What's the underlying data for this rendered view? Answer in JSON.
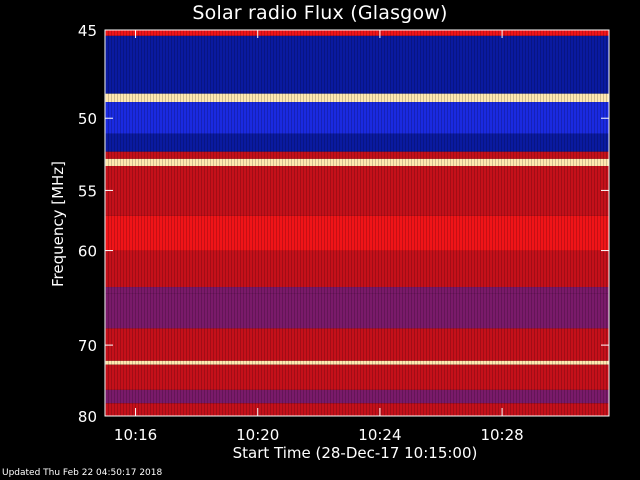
{
  "chart_data": {
    "type": "heatmap",
    "title": "Solar radio Flux (Glasgow)",
    "xlabel": "Start Time (28-Dec-17 10:15:00)",
    "ylabel": "Frequency [MHz]",
    "x_range_minutes": [
      0,
      16.5
    ],
    "ylim": [
      45,
      80
    ],
    "x_ticks": [
      {
        "label": "10:16",
        "minute": 1
      },
      {
        "label": "10:20",
        "minute": 5
      },
      {
        "label": "10:24",
        "minute": 9
      },
      {
        "label": "10:28",
        "minute": 13
      }
    ],
    "y_ticks": [
      45,
      50,
      55,
      60,
      70,
      80
    ],
    "grid": false,
    "bands": [
      {
        "from": 45.0,
        "to": 45.3,
        "level": "high"
      },
      {
        "from": 45.3,
        "to": 48.5,
        "level": "low"
      },
      {
        "from": 48.5,
        "to": 49.0,
        "level": "max"
      },
      {
        "from": 49.0,
        "to": 51.0,
        "level": "low-mid"
      },
      {
        "from": 51.0,
        "to": 52.2,
        "level": "low"
      },
      {
        "from": 52.2,
        "to": 52.7,
        "level": "mid"
      },
      {
        "from": 52.7,
        "to": 53.2,
        "level": "max"
      },
      {
        "from": 53.2,
        "to": 57.0,
        "level": "mid"
      },
      {
        "from": 57.0,
        "to": 60.0,
        "level": "high"
      },
      {
        "from": 60.0,
        "to": 63.5,
        "level": "mid"
      },
      {
        "from": 63.5,
        "to": 64.2,
        "level": "mid-low"
      },
      {
        "from": 64.2,
        "to": 68.0,
        "level": "mid-low"
      },
      {
        "from": 68.0,
        "to": 72.0,
        "level": "mid"
      },
      {
        "from": 72.0,
        "to": 72.5,
        "level": "max"
      },
      {
        "from": 72.5,
        "to": 76.0,
        "level": "mid"
      },
      {
        "from": 76.0,
        "to": 78.0,
        "level": "mid-low"
      },
      {
        "from": 78.0,
        "to": 80.0,
        "level": "mid"
      }
    ],
    "colors": {
      "low": "#0a1aa0",
      "low-mid": "#1a2ae0",
      "mid-low": "#7a1a6a",
      "mid": "#c4101a",
      "high": "#f01418",
      "max": "#ffe8b0"
    }
  },
  "footer": {
    "updated": "Updated Thu Feb 22 04:50:17 2018"
  }
}
